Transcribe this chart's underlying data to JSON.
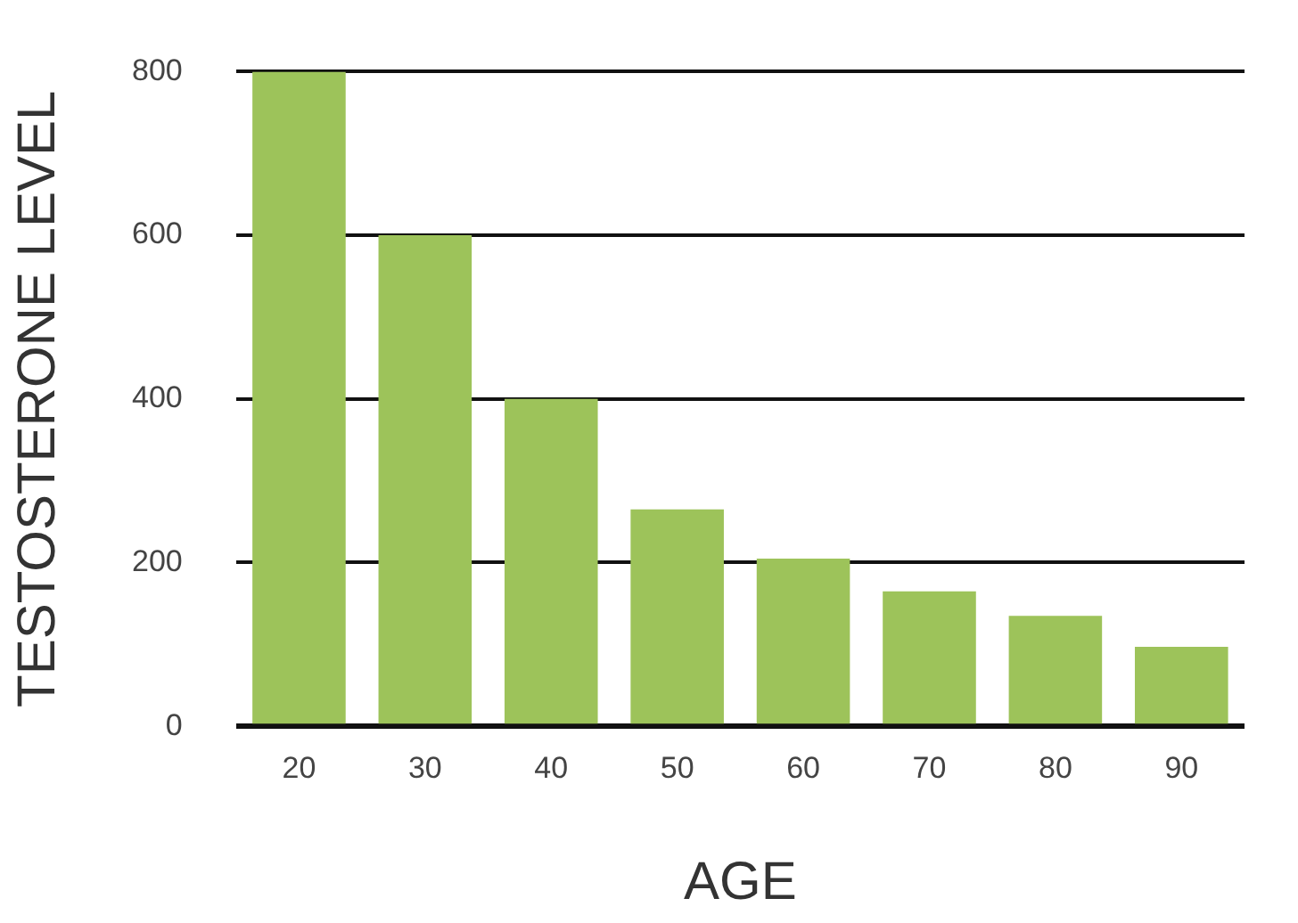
{
  "chart_data": {
    "type": "bar",
    "xlabel": "AGE",
    "ylabel": "TESTOSTERONE LEVEL",
    "categories": [
      "20",
      "30",
      "40",
      "50",
      "60",
      "70",
      "80",
      "90"
    ],
    "values": [
      800,
      600,
      400,
      265,
      205,
      165,
      135,
      97
    ],
    "color": "#9dc35a",
    "ylim": [
      0,
      800
    ],
    "yticks": [
      0,
      200,
      400,
      600,
      800
    ],
    "grid": "y",
    "legend": false
  }
}
